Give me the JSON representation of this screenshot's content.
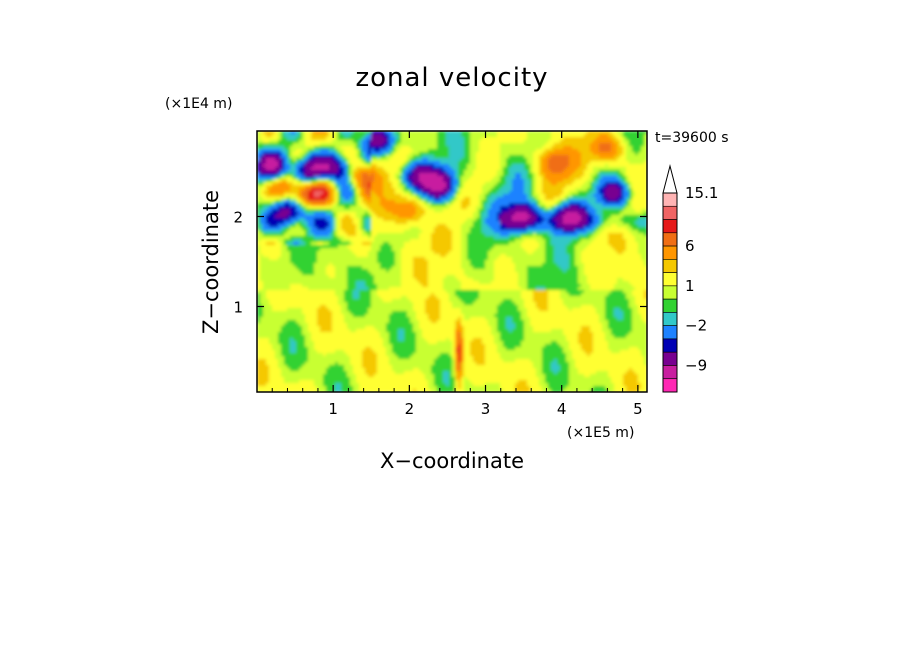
{
  "chart_data": {
    "type": "heatmap",
    "title": "zonal velocity",
    "xlabel": "X−coordinate",
    "ylabel": "Z−coordinate",
    "x_unit_label": "(×1E5 m)",
    "y_unit_label": "(×1E4 m)",
    "time_label": "t=39600 s",
    "xlim": [
      0,
      5.12
    ],
    "ylim": [
      0.05,
      2.95
    ],
    "x_ticks": [
      "1",
      "2",
      "3",
      "4",
      "5"
    ],
    "y_ticks": [
      "1",
      "2"
    ],
    "colorbar": {
      "tick_labels": [
        "15.1",
        "6",
        "1",
        "−2",
        "−9"
      ],
      "levels_top_to_bottom": [
        "#ffb4b4",
        "#f06464",
        "#e61919",
        "#f06e14",
        "#ff9600",
        "#f5c800",
        "#ffff32",
        "#c8ff32",
        "#32d232",
        "#32c8c8",
        "#1e82ff",
        "#0000b4",
        "#780090",
        "#c81ea0",
        "#ff28b4"
      ],
      "extend_top": true
    },
    "features": [
      {
        "x": 0.2,
        "z": 2.55,
        "sign": "negative"
      },
      {
        "x": 0.45,
        "z": 2.05,
        "sign": "negative"
      },
      {
        "x": 0.7,
        "z": 2.5,
        "sign": "negative"
      },
      {
        "x": 1.05,
        "z": 2.55,
        "sign": "negative"
      },
      {
        "x": 1.6,
        "z": 2.85,
        "sign": "negative"
      },
      {
        "x": 2.1,
        "z": 2.45,
        "sign": "negative"
      },
      {
        "x": 2.4,
        "z": 2.35,
        "sign": "negative"
      },
      {
        "x": 3.5,
        "z": 2.0,
        "sign": "negative"
      },
      {
        "x": 4.1,
        "z": 2.0,
        "sign": "negative"
      },
      {
        "x": 4.7,
        "z": 2.25,
        "sign": "negative"
      },
      {
        "x": 0.35,
        "z": 2.35,
        "sign": "positive"
      },
      {
        "x": 0.6,
        "z": 2.25,
        "sign": "positive"
      },
      {
        "x": 0.85,
        "z": 2.25,
        "sign": "positive"
      },
      {
        "x": 1.4,
        "z": 2.45,
        "sign": "positive"
      },
      {
        "x": 2.0,
        "z": 2.05,
        "sign": "positive"
      },
      {
        "x": 3.9,
        "z": 2.6,
        "sign": "positive"
      },
      {
        "x": 4.6,
        "z": 2.75,
        "sign": "positive"
      },
      {
        "x": 2.65,
        "z": 0.45,
        "sign": "positive"
      }
    ]
  }
}
